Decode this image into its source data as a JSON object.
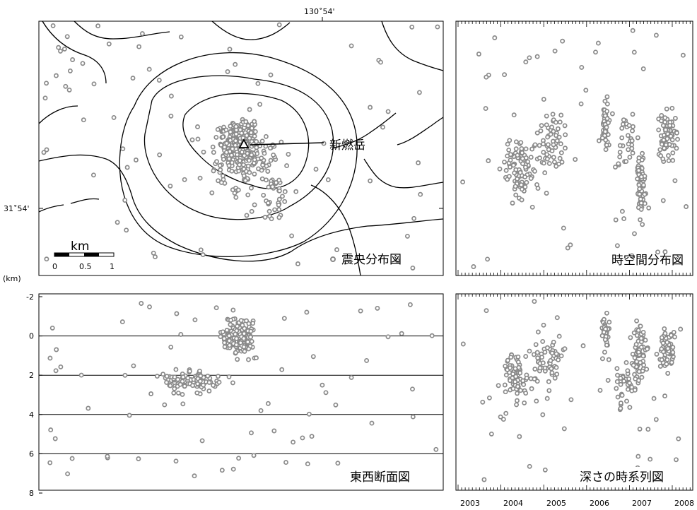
{
  "chart_data": [
    {
      "type": "scatter",
      "panel": "epicenter-map",
      "title": "震央分布図",
      "top_tick_label": "130˚54'",
      "left_tick_label": "31˚54'",
      "scale_bar": {
        "unit": "km",
        "ticks": [
          "0",
          "0.5",
          "1"
        ]
      },
      "volcano_label": "新燃岳",
      "grid": false
    },
    {
      "type": "scatter",
      "panel": "space-time",
      "title": "時空間分布図",
      "x_axis": "time",
      "xlim": [
        2002.7,
        2008.1
      ],
      "grid": false
    },
    {
      "type": "scatter",
      "panel": "east-west-section",
      "title": "東西断面図",
      "unit_label": "(km)",
      "ylabel": "",
      "y_ticks": [
        "-2",
        "0",
        "2",
        "4",
        "6",
        "8"
      ],
      "ylim": [
        -2,
        8
      ],
      "grid": true
    },
    {
      "type": "scatter",
      "panel": "depth-time",
      "title": "深さの時系列図",
      "x_ticks": [
        "2003",
        "2004",
        "2005",
        "2006",
        "2007",
        "2008"
      ],
      "xlim": [
        2002.7,
        2008.1
      ],
      "ylim": [
        -2,
        8
      ],
      "grid": false
    }
  ]
}
